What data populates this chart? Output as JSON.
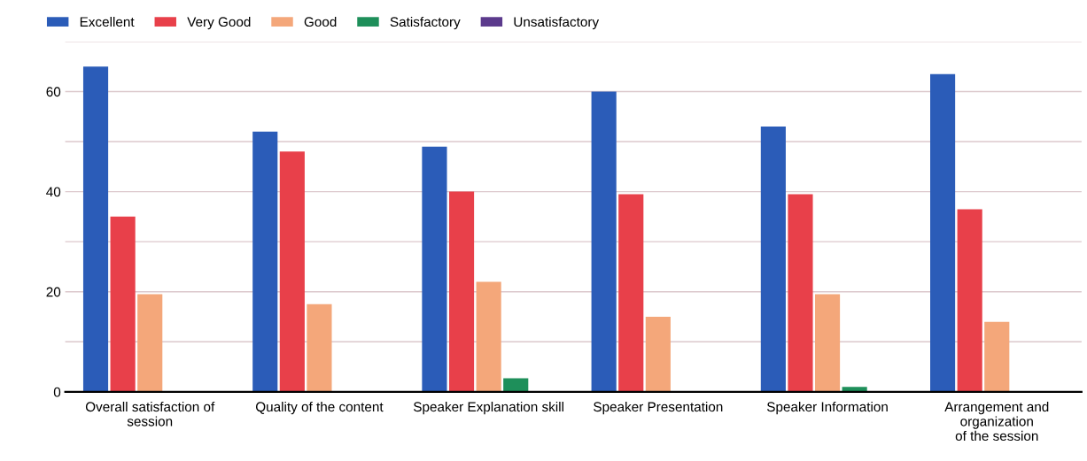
{
  "chart_data": {
    "type": "bar",
    "categories": [
      "Overall satisfaction of session",
      "Quality of the content",
      "Speaker Explanation skill",
      "Speaker Presentation",
      "Speaker Information",
      "Arrangement and organization of the session"
    ],
    "series": [
      {
        "name": "Excellent",
        "color": "#2b5cb8",
        "values": [
          65,
          52,
          49,
          60,
          53,
          63.5
        ]
      },
      {
        "name": "Very Good",
        "color": "#e8404a",
        "values": [
          35,
          48,
          40,
          39.5,
          39.5,
          36.5
        ]
      },
      {
        "name": "Good",
        "color": "#f4a77a",
        "values": [
          19.5,
          17.5,
          22,
          15,
          19.5,
          14
        ]
      },
      {
        "name": "Satisfactory",
        "color": "#1e8f5a",
        "values": [
          0,
          0,
          2.7,
          0,
          1,
          0
        ]
      },
      {
        "name": "Unsatisfactory",
        "color": "#5b3a8c",
        "values": [
          0,
          0,
          0,
          0,
          0,
          0
        ]
      }
    ],
    "ylim": [
      0,
      70
    ],
    "yticks": [
      0,
      {
        "value": 10,
        "label": null
      },
      20,
      {
        "value": 30,
        "label": null
      },
      40,
      {
        "value": 50,
        "label": null
      },
      60,
      {
        "value": 70,
        "label": null
      }
    ],
    "grid": "y",
    "legend": "top left"
  }
}
